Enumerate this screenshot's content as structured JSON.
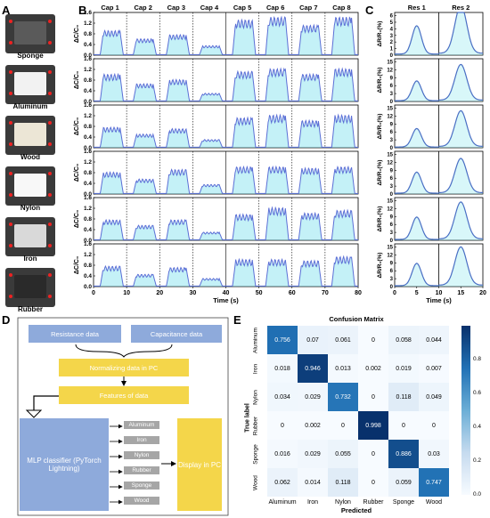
{
  "panels": {
    "a": "A",
    "b": "B",
    "c": "C",
    "d": "D",
    "e": "E"
  },
  "materials": [
    "Sponge",
    "Aluminum",
    "Wood",
    "Nylon",
    "Iron",
    "Rubber"
  ],
  "photo_colors": {
    "Sponge": "#5a5a5a",
    "Aluminum": "#f2f2f2",
    "Wood": "#ece6d6",
    "Nylon": "#f8f8f8",
    "Iron": "#d9d9d9",
    "Rubber": "#2a2a2a"
  },
  "chart_data": [
    {
      "type": "line",
      "panel": "B",
      "columns": [
        "Cap 1",
        "Cap 2",
        "Cap 3",
        "Cap 4",
        "Cap 5",
        "Cap 6",
        "Cap 7",
        "Cap 8"
      ],
      "rows": [
        "Sponge",
        "Aluminum",
        "Wood",
        "Nylon",
        "Iron",
        "Rubber"
      ],
      "xlabel": "Time (s)",
      "ylabel": "ΔC/C₀",
      "xlim": [
        0,
        80
      ],
      "xticks": [
        0,
        10,
        20,
        30,
        40,
        50,
        60,
        70,
        80
      ],
      "ylim": [
        0,
        1.6
      ],
      "yticks": [
        0,
        0.4,
        0.8,
        1.2,
        1.6
      ],
      "ytick_labels": [
        "0.0",
        "0.4",
        "0.8",
        "1.2",
        "1.6"
      ],
      "pulse_starts": [
        2,
        12,
        22,
        32,
        42,
        52,
        62,
        72
      ],
      "pulse_length": 6,
      "plateau": {
        "Sponge": [
          0.9,
          0.6,
          0.75,
          0.35,
          1.3,
          1.4,
          1.1,
          1.4
        ],
        "Aluminum": [
          1.0,
          0.65,
          0.8,
          0.3,
          1.1,
          1.2,
          1.0,
          1.2
        ],
        "Wood": [
          0.75,
          0.5,
          0.7,
          0.3,
          1.1,
          1.2,
          1.0,
          1.2
        ],
        "Nylon": [
          0.8,
          0.55,
          0.9,
          0.35,
          1.0,
          1.0,
          0.95,
          1.0
        ],
        "Iron": [
          0.75,
          0.55,
          0.75,
          0.3,
          0.95,
          1.2,
          1.0,
          1.1
        ],
        "Rubber": [
          0.75,
          0.45,
          0.7,
          0.3,
          1.0,
          1.0,
          0.95,
          1.1
        ]
      }
    },
    {
      "type": "line",
      "panel": "C",
      "columns": [
        "Res 1",
        "Res 2"
      ],
      "rows": [
        "Sponge",
        "Aluminum",
        "Wood",
        "Nylon",
        "Iron",
        "Rubber"
      ],
      "xlabel": "Time (s)",
      "ylabel": "ΔR/R₀(%)",
      "xlim": [
        0,
        20
      ],
      "xticks": [
        0,
        5,
        10,
        15,
        20
      ],
      "peak_x": [
        5,
        15
      ],
      "yticks": {
        "Sponge": [
          0,
          1,
          2,
          3,
          4,
          5,
          6
        ],
        "Aluminum": [
          0,
          3,
          6,
          9,
          12,
          15
        ],
        "Wood": [
          0,
          3,
          6,
          9,
          12,
          15
        ],
        "Nylon": [
          0,
          3,
          6,
          9,
          12,
          15
        ],
        "Iron": [
          0,
          3,
          6,
          9,
          12,
          15
        ],
        "Rubber": [
          0,
          3,
          6,
          9,
          12,
          15
        ]
      },
      "peaks": {
        "Sponge": [
          4.3,
          7.3
        ],
        "Aluminum": [
          7.5,
          13.5
        ],
        "Wood": [
          7,
          13.5
        ],
        "Nylon": [
          8,
          13
        ],
        "Iron": [
          8.5,
          14
        ],
        "Rubber": [
          8.5,
          14.5
        ]
      }
    },
    {
      "type": "heatmap",
      "panel": "E",
      "title": "Confusion Matrix",
      "xlabel": "Predicted",
      "ylabel": "True label",
      "labels": [
        "Aluminum",
        "Iron",
        "Nylon",
        "Rubber",
        "Sponge",
        "Wood"
      ],
      "matrix": [
        [
          "0.756",
          "0.07",
          "0.061",
          "0",
          "0.058",
          "0.044"
        ],
        [
          "0.018",
          "0.946",
          "0.013",
          "0.002",
          "0.019",
          "0.007"
        ],
        [
          "0.034",
          "0.029",
          "0.732",
          "0",
          "0.118",
          "0.049"
        ],
        [
          "0",
          "0.002",
          "0",
          "0.998",
          "0",
          "0"
        ],
        [
          "0.016",
          "0.029",
          "0.055",
          "0",
          "0.886",
          "0.03"
        ],
        [
          "0.062",
          "0.014",
          "0.118",
          "0",
          "0.059",
          "0.747"
        ]
      ],
      "colorbar_ticks": [
        "0.0",
        "0.2",
        "0.4",
        "0.6",
        "0.8"
      ],
      "colorbar_range": [
        0,
        1
      ]
    }
  ],
  "flow": {
    "resistance": "Resistance data",
    "capacitance": "Capacitance data",
    "normalize": "Normalizing data in PC",
    "features": "Features of data",
    "classifier": "MLP classifier (PyTorch Lightning)",
    "display": "Display in PC",
    "outputs": [
      "Aluminum",
      "Iron",
      "Nylon",
      "Rubber",
      "Sponge",
      "Wood"
    ]
  },
  "colors": {
    "cap_line": "#5b6fd6",
    "cap_fill": "#55d8e8",
    "res_line": "#4a6fc4",
    "res_fill": "#7fe3ea",
    "heat_high": "#08306b",
    "heat_low": "#f7fbff",
    "flow_blue": "#8eaadb",
    "flow_yellow": "#f4d64a",
    "flow_gray": "#a6a6a6"
  }
}
